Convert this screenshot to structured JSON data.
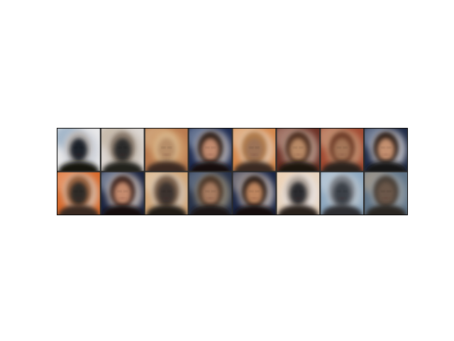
{
  "figure": {
    "background": "#ffffff",
    "frame_color": "#000000",
    "grid_line_color": "#2a2a2a",
    "grid": {
      "rows": 2,
      "columns": 8
    },
    "samples": [
      {
        "background": "#e9e9ea",
        "halo": "#c9cdd6",
        "hair": "#b8b3b0",
        "face": "#1c2029",
        "clothes": "#16120f",
        "tint": "#6c8fb0"
      },
      {
        "background": "#ded8d4",
        "halo": "#c8bfb5",
        "hair": "#8b7b6d",
        "face": "#2a2a2a",
        "clothes": "#24201d",
        "tint": "#b9a78f"
      },
      {
        "background": "#b97a4f",
        "halo": "#d09f6d",
        "hair": "#d5b186",
        "face": "#b68d67",
        "clothes": "#3e2b20",
        "tint": "#e0c29a"
      },
      {
        "background": "#1e2c52",
        "halo": "#c8c2c3",
        "hair": "#2b1d16",
        "face": "#c18a6e",
        "clothes": "#15110f",
        "tint": "#a0b0c8"
      },
      {
        "background": "#d5874b",
        "halo": "#e4cbb4",
        "hair": "#b07b4c",
        "face": "#9b7257",
        "clothes": "#3a2a22",
        "tint": "#ead2b5"
      },
      {
        "background": "#6d3126",
        "halo": "#c1a79a",
        "hair": "#4a2a1c",
        "face": "#b98a66",
        "clothes": "#1b1310",
        "tint": "#d0b0a0"
      },
      {
        "background": "#a24a32",
        "halo": "#c79a7a",
        "hair": "#6d3b27",
        "face": "#a47658",
        "clothes": "#2c201b",
        "tint": "#d8b89a"
      },
      {
        "background": "#1f2a45",
        "halo": "#d8d7dc",
        "hair": "#2a1c18",
        "face": "#c49070",
        "clothes": "#141213",
        "tint": "#a7b5cc"
      },
      {
        "background": "#d96a2c",
        "halo": "#d8c3b3",
        "hair": "#9a6440",
        "face": "#2f2926",
        "clothes": "#3a2a20",
        "tint": "#f0b08a"
      },
      {
        "background": "#1b2440",
        "halo": "#d9cfc9",
        "hair": "#3a241a",
        "face": "#c58b6e",
        "clothes": "#141010",
        "tint": "#b9c4d6"
      },
      {
        "background": "#d2a677",
        "halo": "#d2c4b5",
        "hair": "#7a604b",
        "face": "#3a312d",
        "clothes": "#241d19",
        "tint": "#ead8c0"
      },
      {
        "background": "#27324a",
        "halo": "#98907f",
        "hair": "#4a3426",
        "face": "#a87c60",
        "clothes": "#1a1614",
        "tint": "#7f8fa6"
      },
      {
        "background": "#1a2545",
        "halo": "#cfc6c3",
        "hair": "#2b1a14",
        "face": "#bd855f",
        "clothes": "#121010",
        "tint": "#c6b6aa"
      },
      {
        "background": "#e8d4bf",
        "halo": "#e8e3e3",
        "hair": "#b8aca2",
        "face": "#2a2c2f",
        "clothes": "#2b221c",
        "tint": "#f2d2b0"
      },
      {
        "background": "#8da8c0",
        "halo": "#bcc6cf",
        "hair": "#7a7f86",
        "face": "#3a3f46",
        "clothes": "#2f2f33",
        "tint": "#d4dde6"
      },
      {
        "background": "#5f7488",
        "halo": "#9aa2a8",
        "hair": "#4a4038",
        "face": "#6b5648",
        "clothes": "#2c2622",
        "tint": "#c8ad8e"
      }
    ]
  }
}
